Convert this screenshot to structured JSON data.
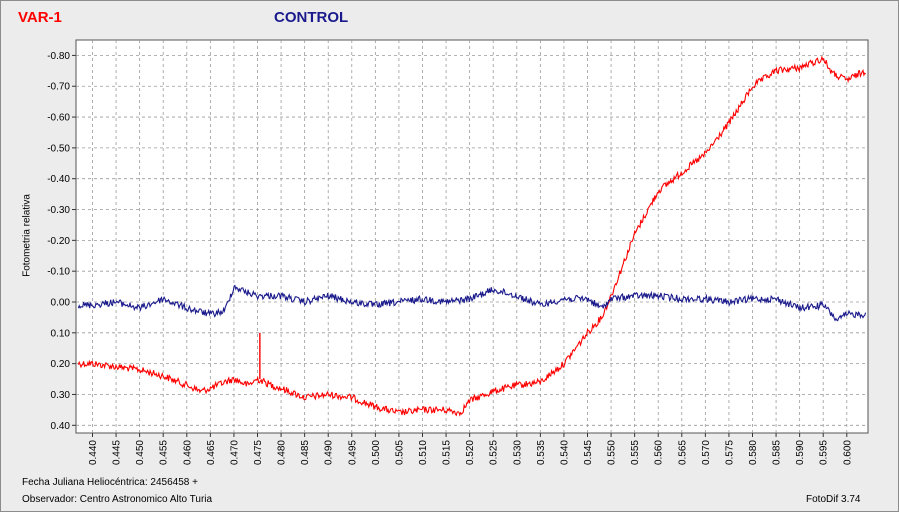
{
  "legend": {
    "var_label": "VAR-1",
    "control_label": "CONTROL"
  },
  "footer": {
    "fecha": "Fecha Juliana Heliocéntrica: 2456458 +",
    "observador": "Observador: Centro Astronomico Alto Turia",
    "software": "FotoDif 3.74"
  },
  "colors": {
    "var": "#ff0000",
    "control": "#1a1a8c",
    "grid": "#9a9a9a"
  },
  "chart_data": {
    "type": "line",
    "ylabel": "Fotometria relativa",
    "xlim": [
      0.4365,
      0.6045
    ],
    "ylim": [
      0.425,
      -0.85
    ],
    "y_inverted": true,
    "grid": true,
    "x_ticks": [
      "0.440",
      "0.445",
      "0.450",
      "0.455",
      "0.460",
      "0.465",
      "0.470",
      "0.475",
      "0.480",
      "0.485",
      "0.490",
      "0.495",
      "0.500",
      "0.505",
      "0.510",
      "0.515",
      "0.520",
      "0.525",
      "0.530",
      "0.535",
      "0.540",
      "0.545",
      "0.550",
      "0.555",
      "0.560",
      "0.565",
      "0.570",
      "0.575",
      "0.580",
      "0.585",
      "0.590",
      "0.595",
      "0.600"
    ],
    "y_ticks": [
      "-0.80",
      "-0.70",
      "-0.60",
      "-0.50",
      "-0.40",
      "-0.30",
      "-0.20",
      "-0.10",
      "0.00",
      "0.10",
      "0.20",
      "0.30",
      "0.40"
    ],
    "series": [
      {
        "name": "VAR-1",
        "x": [
          0.437,
          0.44,
          0.445,
          0.45,
          0.455,
          0.46,
          0.463,
          0.465,
          0.468,
          0.47,
          0.473,
          0.475,
          0.478,
          0.48,
          0.485,
          0.49,
          0.495,
          0.5,
          0.505,
          0.51,
          0.515,
          0.518,
          0.52,
          0.525,
          0.53,
          0.535,
          0.54,
          0.545,
          0.548,
          0.55,
          0.552,
          0.555,
          0.56,
          0.565,
          0.57,
          0.575,
          0.578,
          0.58,
          0.585,
          0.59,
          0.595,
          0.597,
          0.6,
          0.604
        ],
        "y": [
          0.2,
          0.2,
          0.21,
          0.22,
          0.24,
          0.27,
          0.29,
          0.28,
          0.26,
          0.25,
          0.27,
          0.25,
          0.27,
          0.28,
          0.31,
          0.3,
          0.31,
          0.34,
          0.36,
          0.35,
          0.35,
          0.36,
          0.32,
          0.29,
          0.27,
          0.26,
          0.2,
          0.1,
          0.05,
          -0.02,
          -0.1,
          -0.22,
          -0.36,
          -0.42,
          -0.48,
          -0.58,
          -0.65,
          -0.7,
          -0.75,
          -0.76,
          -0.79,
          -0.74,
          -0.72,
          -0.75
        ]
      },
      {
        "name": "CONTROL",
        "x": [
          0.437,
          0.44,
          0.445,
          0.45,
          0.455,
          0.46,
          0.465,
          0.468,
          0.47,
          0.473,
          0.475,
          0.48,
          0.485,
          0.49,
          0.495,
          0.5,
          0.505,
          0.51,
          0.515,
          0.52,
          0.525,
          0.53,
          0.535,
          0.54,
          0.545,
          0.548,
          0.55,
          0.555,
          0.56,
          0.565,
          0.57,
          0.575,
          0.58,
          0.585,
          0.59,
          0.595,
          0.598,
          0.6,
          0.604
        ],
        "y": [
          0.01,
          0.01,
          0.0,
          0.02,
          -0.01,
          0.02,
          0.04,
          0.03,
          -0.05,
          -0.03,
          -0.02,
          -0.02,
          0.0,
          -0.02,
          0.0,
          0.01,
          0.0,
          -0.01,
          0.0,
          -0.01,
          -0.04,
          -0.02,
          0.01,
          -0.01,
          -0.01,
          0.02,
          -0.01,
          -0.02,
          -0.02,
          -0.01,
          -0.01,
          0.0,
          -0.01,
          -0.01,
          0.02,
          0.01,
          0.06,
          0.04,
          0.04
        ]
      }
    ]
  }
}
